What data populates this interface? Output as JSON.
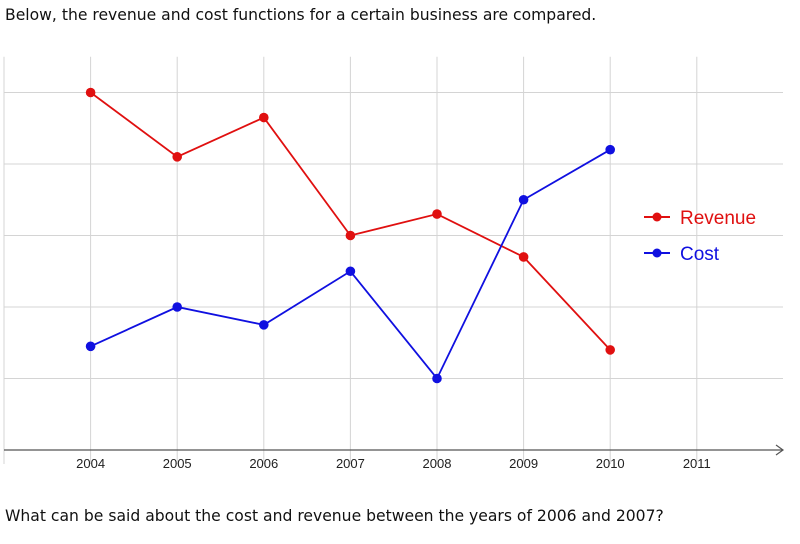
{
  "intro_text": "Below, the revenue and cost functions for a certain business are compared.",
  "question_text": "What can be said about the cost and revenue between the years of 2006 and 2007?",
  "chart_data": {
    "type": "line",
    "title": "",
    "xlabel": "",
    "ylabel": "",
    "x": [
      2004,
      2005,
      2006,
      2007,
      2008,
      2009,
      2010
    ],
    "x_ticks": [
      "2004",
      "2005",
      "2006",
      "2007",
      "2008",
      "2009",
      "2010",
      "2011"
    ],
    "xlim": [
      2003,
      2011.5
    ],
    "ylim": [
      0,
      5.5
    ],
    "y_tick_labels_shown": false,
    "grid": true,
    "legend_position": "right",
    "series": [
      {
        "name": "Revenue",
        "color": "#e01010",
        "values": [
          5.0,
          4.1,
          4.65,
          3.0,
          3.3,
          2.7,
          1.4
        ]
      },
      {
        "name": "Cost",
        "color": "#1010e0",
        "values": [
          1.45,
          2.0,
          1.75,
          2.5,
          1.0,
          3.5,
          4.2
        ]
      }
    ]
  }
}
